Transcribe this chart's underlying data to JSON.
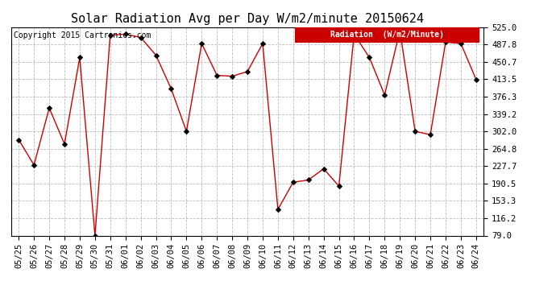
{
  "title": "Solar Radiation Avg per Day W/m2/minute 20150624",
  "copyright": "Copyright 2015 Cartronics.com",
  "legend_label": "Radiation  (W/m2/Minute)",
  "dates": [
    "05/25",
    "05/26",
    "05/27",
    "05/28",
    "05/29",
    "05/30",
    "05/31",
    "06/01",
    "06/02",
    "06/03",
    "06/04",
    "06/05",
    "06/06",
    "06/07",
    "06/08",
    "06/09",
    "06/10",
    "06/11",
    "06/12",
    "06/13",
    "06/14",
    "06/15",
    "06/16",
    "06/17",
    "06/18",
    "06/19",
    "06/20",
    "06/21",
    "06/22",
    "06/23",
    "06/24"
  ],
  "values": [
    284,
    230,
    352,
    275,
    460,
    79,
    508,
    510,
    503,
    465,
    393,
    302,
    490,
    422,
    420,
    430,
    490,
    135,
    193,
    198,
    222,
    185,
    510,
    460,
    380,
    518,
    302,
    295,
    493,
    490,
    413
  ],
  "ylim": [
    79.0,
    525.0
  ],
  "yticks": [
    79.0,
    116.2,
    153.3,
    190.5,
    227.7,
    264.8,
    302.0,
    339.2,
    376.3,
    413.5,
    450.7,
    487.8,
    525.0
  ],
  "line_color": "#cc0000",
  "marker": "D",
  "marker_size": 3,
  "marker_color": "#000000",
  "bg_color": "#ffffff",
  "plot_bg_color": "#ffffff",
  "grid_color": "#bbbbbb",
  "legend_bg": "#cc0000",
  "legend_text_color": "#ffffff",
  "title_fontsize": 11,
  "tick_fontsize": 7.5,
  "copyright_fontsize": 7
}
